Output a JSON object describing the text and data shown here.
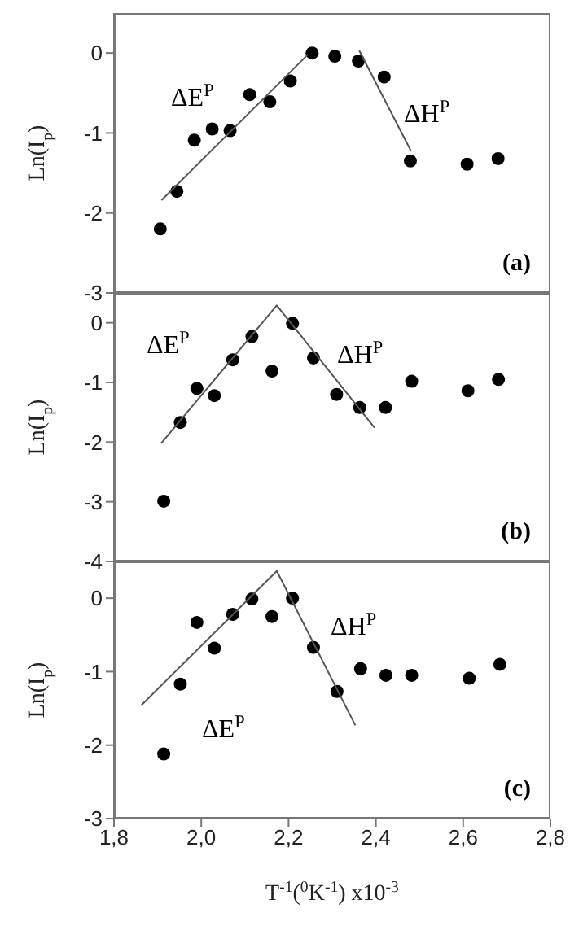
{
  "chart_data": [
    {
      "type": "scatter",
      "ylabel": "Ln(I$_{p}$)",
      "xlim": [
        1.8,
        2.8
      ],
      "ylim": [
        -3,
        0.5
      ],
      "yticks": [
        -3,
        -2,
        -1,
        0
      ],
      "tick_labels": "y",
      "marker": "circle",
      "annotations": [
        "ΔE$^{P}$",
        "ΔH$^{P}$",
        "(a)"
      ],
      "series": [
        {
          "color": "#000000",
          "x": [
            1.906,
            1.944,
            1.984,
            2.025,
            2.066,
            2.111,
            2.157,
            2.204,
            2.254,
            2.306,
            2.36,
            2.419,
            2.479,
            2.609,
            2.68
          ],
          "values": [
            -2.2,
            -1.73,
            -1.09,
            -0.95,
            -0.97,
            -0.52,
            -0.61,
            -0.35,
            0,
            -0.04,
            -0.1,
            -0.3,
            -1.35,
            -1.39,
            -1.32
          ]
        },
        {
          "type": "line",
          "marker": "none",
          "color": "#555555",
          "x": [
            1.909,
            2.244
          ],
          "values": [
            -1.84,
            -0.02
          ]
        },
        {
          "type": "line",
          "marker": "none",
          "color": "#555555",
          "x": [
            2.362,
            2.48
          ],
          "values": [
            0.03,
            -1.22
          ]
        }
      ]
    },
    {
      "type": "scatter",
      "ylabel": "Ln(I$_{p}$)",
      "xlim": [
        1.8,
        2.8
      ],
      "ylim": [
        -4,
        0.5
      ],
      "yticks": [
        -4,
        -3,
        -2,
        -1,
        0
      ],
      "tick_labels": "y",
      "marker": "circle",
      "annotations": [
        "ΔE$^{P}$",
        "ΔH$^{P}$",
        "(b)"
      ],
      "series": [
        {
          "color": "#000000",
          "x": [
            1.914,
            1.952,
            1.99,
            2.03,
            2.072,
            2.116,
            2.162,
            2.209,
            2.257,
            2.31,
            2.363,
            2.422,
            2.482,
            2.611,
            2.681
          ],
          "values": [
            -2.99,
            -1.67,
            -1.1,
            -1.22,
            -0.62,
            -0.23,
            -0.81,
            -0.01,
            -0.59,
            -1.2,
            -1.42,
            -1.42,
            -0.98,
            -1.14,
            -0.95
          ]
        },
        {
          "type": "line",
          "marker": "none",
          "color": "#555555",
          "x": [
            1.908,
            2.173,
            2.397
          ],
          "values": [
            -2.02,
            0.29,
            -1.76
          ]
        }
      ]
    },
    {
      "type": "scatter",
      "ylabel": "Ln(I$_{p}$)",
      "xlabel": "T$^{-1}$($^{0}$K$^{-1}$) x10$^{-3}$",
      "xlim": [
        1.8,
        2.8
      ],
      "xticks": [
        {
          "value": 1.8,
          "label": "1,8"
        },
        {
          "value": 2.0,
          "label": "2,0"
        },
        {
          "value": 2.2,
          "label": "2,2"
        },
        {
          "value": 2.4,
          "label": "2,4"
        },
        {
          "value": 2.6,
          "label": "2,6"
        },
        {
          "value": 2.8,
          "label": "2,8"
        }
      ],
      "ylim": [
        -3,
        0.5
      ],
      "yticks": [
        -3,
        -2,
        -1,
        0
      ],
      "marker": "circle",
      "annotations": [
        "ΔH$^{P}$",
        "ΔE$^{P}$",
        "(c)"
      ],
      "series": [
        {
          "color": "#000000",
          "x": [
            1.914,
            1.952,
            1.99,
            2.03,
            2.072,
            2.116,
            2.162,
            2.209,
            2.257,
            2.311,
            2.365,
            2.423,
            2.482,
            2.614,
            2.684
          ],
          "values": [
            -2.12,
            -1.17,
            -0.33,
            -0.68,
            -0.22,
            -0.01,
            -0.25,
            0,
            -0.67,
            -1.27,
            -0.96,
            -1.05,
            -1.05,
            -1.09,
            -0.9
          ]
        },
        {
          "type": "line",
          "marker": "none",
          "color": "#555555",
          "x": [
            1.862,
            2.173,
            2.353
          ],
          "values": [
            -1.46,
            0.37,
            -1.73
          ]
        }
      ]
    }
  ]
}
